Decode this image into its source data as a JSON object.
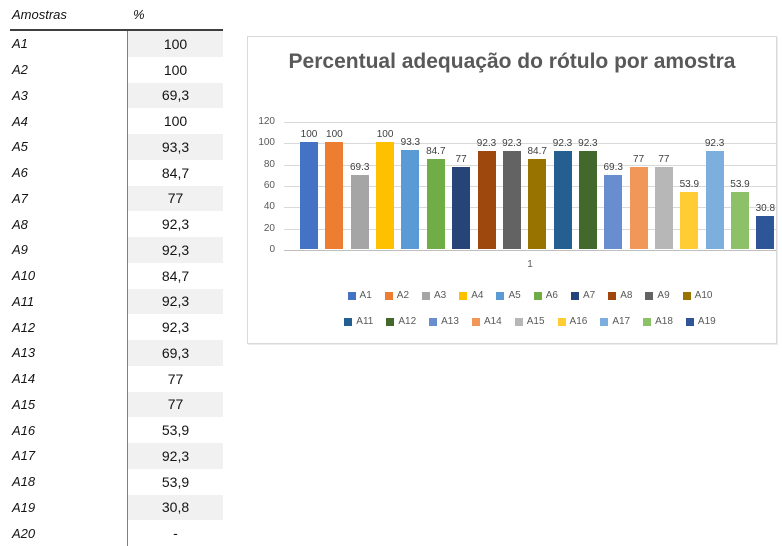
{
  "table": {
    "header": {
      "samples": "Amostras",
      "percent": "%"
    },
    "rows": [
      {
        "sample": "A1",
        "percent": "100"
      },
      {
        "sample": "A2",
        "percent": "100"
      },
      {
        "sample": "A3",
        "percent": "69,3"
      },
      {
        "sample": "A4",
        "percent": "100"
      },
      {
        "sample": "A5",
        "percent": "93,3"
      },
      {
        "sample": "A6",
        "percent": "84,7"
      },
      {
        "sample": "A7",
        "percent": "77"
      },
      {
        "sample": "A8",
        "percent": "92,3"
      },
      {
        "sample": "A9",
        "percent": "92,3"
      },
      {
        "sample": "A10",
        "percent": "84,7"
      },
      {
        "sample": "A11",
        "percent": "92,3"
      },
      {
        "sample": "A12",
        "percent": "92,3"
      },
      {
        "sample": "A13",
        "percent": "69,3"
      },
      {
        "sample": "A14",
        "percent": "77"
      },
      {
        "sample": "A15",
        "percent": "77"
      },
      {
        "sample": "A16",
        "percent": "53,9"
      },
      {
        "sample": "A17",
        "percent": "92,3"
      },
      {
        "sample": "A18",
        "percent": "53,9"
      },
      {
        "sample": "A19",
        "percent": "30,8"
      },
      {
        "sample": "A20",
        "percent": "-"
      }
    ]
  },
  "chart_data": {
    "type": "bar",
    "title": "Percentual adequação do rótulo por amostra",
    "categories": [
      "1"
    ],
    "xlabel": "",
    "ylabel": "",
    "ylim": [
      0,
      120
    ],
    "yticks": [
      0,
      20,
      40,
      60,
      80,
      100,
      120
    ],
    "grid": true,
    "legend_position": "bottom",
    "title_color": "#595959",
    "axis_text_color": "#595959",
    "data_label_color": "#404040",
    "series": [
      {
        "name": "A1",
        "values": [
          100
        ],
        "data_label": "100",
        "color": "#4472C4"
      },
      {
        "name": "A2",
        "values": [
          100
        ],
        "data_label": "100",
        "color": "#ED7D31"
      },
      {
        "name": "A3",
        "values": [
          69.3
        ],
        "data_label": "69.3",
        "color": "#A5A5A5"
      },
      {
        "name": "A4",
        "values": [
          100
        ],
        "data_label": "100",
        "color": "#FFC000"
      },
      {
        "name": "A5",
        "values": [
          93.3
        ],
        "data_label": "93.3",
        "color": "#5B9BD5"
      },
      {
        "name": "A6",
        "values": [
          84.7
        ],
        "data_label": "84.7",
        "color": "#70AD47"
      },
      {
        "name": "A7",
        "values": [
          77
        ],
        "data_label": "77",
        "color": "#264478"
      },
      {
        "name": "A8",
        "values": [
          92.3
        ],
        "data_label": "92.3",
        "color": "#9E480E"
      },
      {
        "name": "A9",
        "values": [
          92.3
        ],
        "data_label": "92.3",
        "color": "#636363"
      },
      {
        "name": "A10",
        "values": [
          84.7
        ],
        "data_label": "84.7",
        "color": "#997300"
      },
      {
        "name": "A11",
        "values": [
          92.3
        ],
        "data_label": "92.3",
        "color": "#255E91"
      },
      {
        "name": "A12",
        "values": [
          92.3
        ],
        "data_label": "92.3",
        "color": "#43682B"
      },
      {
        "name": "A13",
        "values": [
          69.3
        ],
        "data_label": "69.3",
        "color": "#698ED0"
      },
      {
        "name": "A14",
        "values": [
          77
        ],
        "data_label": "77",
        "color": "#F1975A"
      },
      {
        "name": "A15",
        "values": [
          77
        ],
        "data_label": "77",
        "color": "#B7B7B7"
      },
      {
        "name": "A16",
        "values": [
          53.9
        ],
        "data_label": "53.9",
        "color": "#FFCD33"
      },
      {
        "name": "A17",
        "values": [
          92.3
        ],
        "data_label": "92.3",
        "color": "#7CAFDD"
      },
      {
        "name": "A18",
        "values": [
          53.9
        ],
        "data_label": "53.9",
        "color": "#8CC168"
      },
      {
        "name": "A19",
        "values": [
          30.8
        ],
        "data_label": "30.8",
        "color": "#2E5597"
      }
    ]
  }
}
